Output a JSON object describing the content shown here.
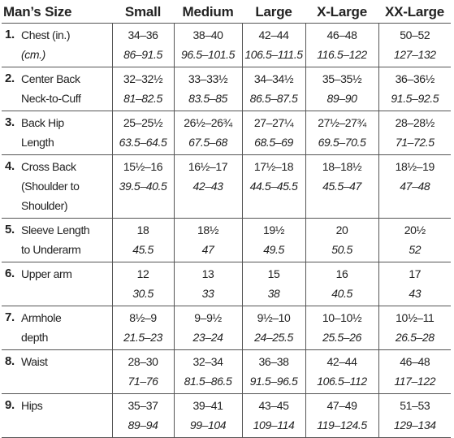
{
  "table": {
    "header": [
      "Man’s Size",
      "Small",
      "Medium",
      "Large",
      "X-Large",
      "XX-Large"
    ],
    "rows": [
      {
        "number": "1.",
        "label": [
          "Chest (in.)",
          "(cm.)"
        ],
        "inches": [
          "34–36",
          "38–40",
          "42–44",
          "46–48",
          "50–52"
        ],
        "cm": [
          "86–91.5",
          "96.5–101.5",
          "106.5–111.5",
          "116.5–122",
          "127–132"
        ]
      },
      {
        "number": "2.",
        "label": [
          "Center Back",
          "Neck-to-Cuff"
        ],
        "inches": [
          "32–32½",
          "33–33½",
          "34–34½",
          "35–35½",
          "36–36½"
        ],
        "cm": [
          "81–82.5",
          "83.5–85",
          "86.5–87.5",
          "89–90",
          "91.5–92.5"
        ]
      },
      {
        "number": "3.",
        "label": [
          "Back Hip",
          "Length"
        ],
        "inches": [
          "25–25½",
          "26½–26¾",
          "27–27¼",
          "27½–27¾",
          "28–28½"
        ],
        "cm": [
          "63.5–64.5",
          "67.5–68",
          "68.5–69",
          "69.5–70.5",
          "71–72.5"
        ]
      },
      {
        "number": "4.",
        "label": [
          "Cross Back",
          "(Shoulder to",
          "Shoulder)"
        ],
        "inches": [
          "15½–16",
          "16½–17",
          "17½–18",
          "18–18½",
          "18½–19"
        ],
        "cm": [
          "39.5–40.5",
          "42–43",
          "44.5–45.5",
          "45.5–47",
          "47–48"
        ]
      },
      {
        "number": "5.",
        "label": [
          "Sleeve Length",
          "to Underarm"
        ],
        "inches": [
          "18",
          "18½",
          "19½",
          "20",
          "20½"
        ],
        "cm": [
          "45.5",
          "47",
          "49.5",
          "50.5",
          "52"
        ]
      },
      {
        "number": "6.",
        "label": [
          "Upper arm"
        ],
        "inches": [
          "12",
          "13",
          "15",
          "16",
          "17"
        ],
        "cm": [
          "30.5",
          "33",
          "38",
          "40.5",
          "43"
        ]
      },
      {
        "number": "7.",
        "label": [
          "Armhole",
          "depth"
        ],
        "inches": [
          "8½–9",
          "9–9½",
          "9½–10",
          "10–10½",
          "10½–11"
        ],
        "cm": [
          "21.5–23",
          "23–24",
          "24–25.5",
          "25.5–26",
          "26.5–28"
        ]
      },
      {
        "number": "8.",
        "label": [
          "Waist"
        ],
        "inches": [
          "28–30",
          "32–34",
          "36–38",
          "42–44",
          "46–48"
        ],
        "cm": [
          "71–76",
          "81.5–86.5",
          "91.5–96.5",
          "106.5–112",
          "117–122"
        ]
      },
      {
        "number": "9.",
        "label": [
          "Hips"
        ],
        "inches": [
          "35–37",
          "39–41",
          "43–45",
          "47–49",
          "51–53"
        ],
        "cm": [
          "89–94",
          "99–104",
          "109–114",
          "119–124.5",
          "129–134"
        ]
      }
    ]
  }
}
